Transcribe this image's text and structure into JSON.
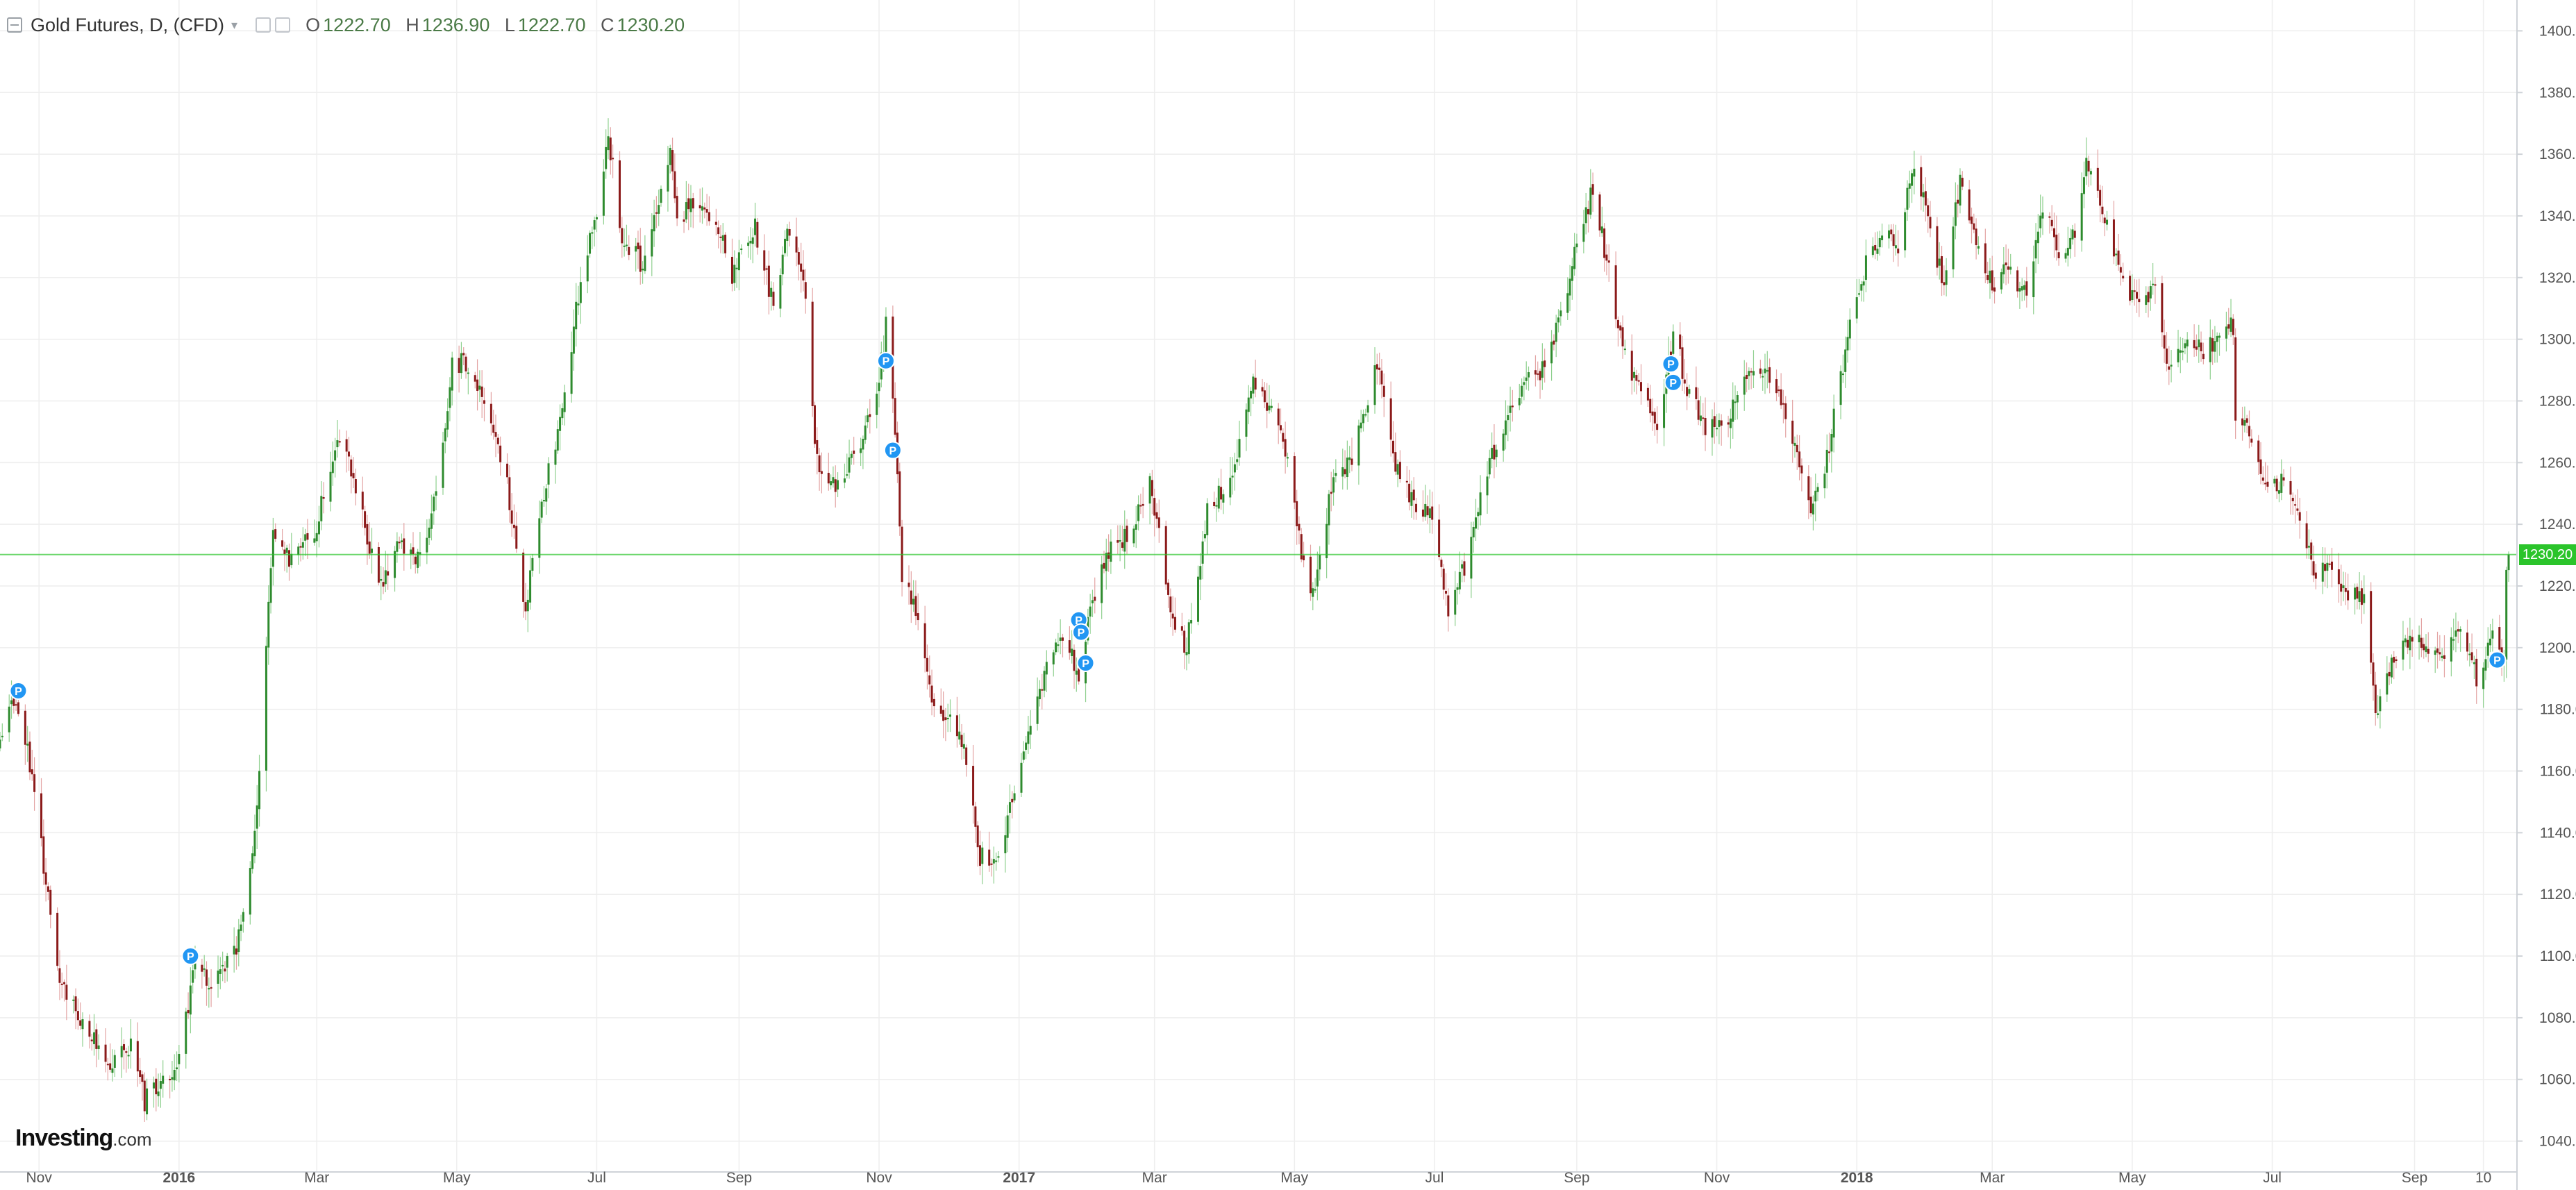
{
  "header": {
    "title": "Gold Futures, D, (CFD)",
    "ohlc": [
      {
        "label": "O",
        "value": "1222.70"
      },
      {
        "label": "H",
        "value": "1236.90"
      },
      {
        "label": "L",
        "value": "1222.70"
      },
      {
        "label": "C",
        "value": "1230.20"
      }
    ]
  },
  "branding": {
    "bold": "Investing",
    "suffix": ".com"
  },
  "last_price": {
    "value": 1230.2,
    "label": "1230.20",
    "color": "#2bc42b"
  },
  "colors": {
    "up": "#2e8b2e",
    "down": "#8b1a1a",
    "grid": "#eeeeee",
    "axis_text": "#555555",
    "marker": "#2196f3"
  },
  "chart_data": {
    "type": "candlestick",
    "title": "Gold Futures, D, (CFD)",
    "xlabel": "",
    "ylabel": "",
    "ylim": [
      1030,
      1410
    ],
    "x_range": [
      "2015-10-15",
      "2018-10-12"
    ],
    "grid": true,
    "price_axis_side": "right",
    "y_ticks": [
      1040,
      1060,
      1080,
      1100,
      1120,
      1140,
      1160,
      1180,
      1200,
      1220,
      1240,
      1260,
      1280,
      1300,
      1320,
      1340,
      1360,
      1380,
      1400
    ],
    "x_ticks": [
      {
        "date": "2015-11-01",
        "label": "Nov"
      },
      {
        "date": "2016-01-01",
        "label": "2016",
        "bold": true
      },
      {
        "date": "2016-03-01",
        "label": "Mar"
      },
      {
        "date": "2016-05-01",
        "label": "May"
      },
      {
        "date": "2016-07-01",
        "label": "Jul"
      },
      {
        "date": "2016-09-01",
        "label": "Sep"
      },
      {
        "date": "2016-11-01",
        "label": "Nov"
      },
      {
        "date": "2017-01-01",
        "label": "2017",
        "bold": true
      },
      {
        "date": "2017-03-01",
        "label": "Mar"
      },
      {
        "date": "2017-05-01",
        "label": "May"
      },
      {
        "date": "2017-07-01",
        "label": "Jul"
      },
      {
        "date": "2017-09-01",
        "label": "Sep"
      },
      {
        "date": "2017-11-01",
        "label": "Nov"
      },
      {
        "date": "2018-01-01",
        "label": "2018",
        "bold": true
      },
      {
        "date": "2018-03-01",
        "label": "Mar"
      },
      {
        "date": "2018-05-01",
        "label": "May"
      },
      {
        "date": "2018-07-01",
        "label": "Jul"
      },
      {
        "date": "2018-09-01",
        "label": "Sep"
      },
      {
        "date": "2018-10-01",
        "label": "10"
      }
    ],
    "close_path": [
      [
        "2015-10-15",
        1168
      ],
      [
        "2015-10-20",
        1183
      ],
      [
        "2015-10-27",
        1168
      ],
      [
        "2015-11-02",
        1136
      ],
      [
        "2015-11-09",
        1095
      ],
      [
        "2015-11-20",
        1078
      ],
      [
        "2015-12-02",
        1065
      ],
      [
        "2015-12-11",
        1072
      ],
      [
        "2015-12-17",
        1053
      ],
      [
        "2015-12-31",
        1062
      ],
      [
        "2016-01-08",
        1098
      ],
      [
        "2016-01-15",
        1090
      ],
      [
        "2016-01-25",
        1100
      ],
      [
        "2016-02-01",
        1128
      ],
      [
        "2016-02-05",
        1158
      ],
      [
        "2016-02-11",
        1240
      ],
      [
        "2016-02-19",
        1228
      ],
      [
        "2016-03-01",
        1240
      ],
      [
        "2016-03-10",
        1270
      ],
      [
        "2016-03-17",
        1254
      ],
      [
        "2016-03-28",
        1220
      ],
      [
        "2016-04-05",
        1232
      ],
      [
        "2016-04-14",
        1230
      ],
      [
        "2016-04-22",
        1248
      ],
      [
        "2016-04-29",
        1292
      ],
      [
        "2016-05-06",
        1292
      ],
      [
        "2016-05-16",
        1275
      ],
      [
        "2016-05-23",
        1252
      ],
      [
        "2016-05-31",
        1212
      ],
      [
        "2016-06-06",
        1244
      ],
      [
        "2016-06-16",
        1276
      ],
      [
        "2016-06-24",
        1320
      ],
      [
        "2016-07-01",
        1342
      ],
      [
        "2016-07-06",
        1366
      ],
      [
        "2016-07-12",
        1334
      ],
      [
        "2016-07-21",
        1324
      ],
      [
        "2016-08-02",
        1362
      ],
      [
        "2016-08-05",
        1337
      ],
      [
        "2016-08-12",
        1345
      ],
      [
        "2016-08-22",
        1340
      ],
      [
        "2016-08-29",
        1320
      ],
      [
        "2016-09-02",
        1327
      ],
      [
        "2016-09-08",
        1336
      ],
      [
        "2016-09-16",
        1310
      ],
      [
        "2016-09-22",
        1338
      ],
      [
        "2016-09-30",
        1316
      ],
      [
        "2016-10-04",
        1268
      ],
      [
        "2016-10-07",
        1256
      ],
      [
        "2016-10-14",
        1253
      ],
      [
        "2016-10-24",
        1266
      ],
      [
        "2016-11-01",
        1288
      ],
      [
        "2016-11-04",
        1304
      ],
      [
        "2016-11-08",
        1272
      ],
      [
        "2016-11-11",
        1224
      ],
      [
        "2016-11-18",
        1208
      ],
      [
        "2016-11-25",
        1180
      ],
      [
        "2016-12-02",
        1175
      ],
      [
        "2016-12-08",
        1170
      ],
      [
        "2016-12-15",
        1132
      ],
      [
        "2016-12-22",
        1130
      ],
      [
        "2016-12-30",
        1152
      ],
      [
        "2017-01-06",
        1173
      ],
      [
        "2017-01-13",
        1196
      ],
      [
        "2017-01-20",
        1205
      ],
      [
        "2017-01-27",
        1192
      ],
      [
        "2017-02-03",
        1218
      ],
      [
        "2017-02-10",
        1234
      ],
      [
        "2017-02-17",
        1236
      ],
      [
        "2017-02-27",
        1254
      ],
      [
        "2017-03-08",
        1212
      ],
      [
        "2017-03-15",
        1200
      ],
      [
        "2017-03-24",
        1244
      ],
      [
        "2017-04-04",
        1256
      ],
      [
        "2017-04-13",
        1286
      ],
      [
        "2017-04-21",
        1278
      ],
      [
        "2017-04-28",
        1262
      ],
      [
        "2017-05-04",
        1232
      ],
      [
        "2017-05-09",
        1218
      ],
      [
        "2017-05-17",
        1252
      ],
      [
        "2017-05-26",
        1262
      ],
      [
        "2017-06-06",
        1292
      ],
      [
        "2017-06-13",
        1262
      ],
      [
        "2017-06-21",
        1248
      ],
      [
        "2017-06-30",
        1244
      ],
      [
        "2017-07-07",
        1212
      ],
      [
        "2017-07-14",
        1226
      ],
      [
        "2017-07-24",
        1258
      ],
      [
        "2017-08-01",
        1272
      ],
      [
        "2017-08-10",
        1286
      ],
      [
        "2017-08-18",
        1290
      ],
      [
        "2017-08-28",
        1316
      ],
      [
        "2017-09-01",
        1333
      ],
      [
        "2017-09-08",
        1348
      ],
      [
        "2017-09-15",
        1322
      ],
      [
        "2017-09-21",
        1296
      ],
      [
        "2017-09-29",
        1282
      ],
      [
        "2017-10-06",
        1272
      ],
      [
        "2017-10-13",
        1302
      ],
      [
        "2017-10-20",
        1282
      ],
      [
        "2017-10-27",
        1272
      ],
      [
        "2017-11-03",
        1270
      ],
      [
        "2017-11-10",
        1282
      ],
      [
        "2017-11-20",
        1292
      ],
      [
        "2017-11-28",
        1282
      ],
      [
        "2017-12-06",
        1262
      ],
      [
        "2017-12-12",
        1242
      ],
      [
        "2017-12-19",
        1262
      ],
      [
        "2017-12-29",
        1303
      ],
      [
        "2018-01-04",
        1322
      ],
      [
        "2018-01-12",
        1336
      ],
      [
        "2018-01-19",
        1330
      ],
      [
        "2018-01-26",
        1358
      ],
      [
        "2018-02-02",
        1338
      ],
      [
        "2018-02-08",
        1315
      ],
      [
        "2018-02-15",
        1352
      ],
      [
        "2018-02-23",
        1330
      ],
      [
        "2018-03-01",
        1318
      ],
      [
        "2018-03-08",
        1322
      ],
      [
        "2018-03-16",
        1315
      ],
      [
        "2018-03-23",
        1344
      ],
      [
        "2018-03-30",
        1328
      ],
      [
        "2018-04-06",
        1334
      ],
      [
        "2018-04-11",
        1356
      ],
      [
        "2018-04-20",
        1336
      ],
      [
        "2018-04-27",
        1318
      ],
      [
        "2018-05-04",
        1312
      ],
      [
        "2018-05-11",
        1318
      ],
      [
        "2018-05-17",
        1290
      ],
      [
        "2018-05-25",
        1300
      ],
      [
        "2018-06-01",
        1296
      ],
      [
        "2018-06-08",
        1302
      ],
      [
        "2018-06-14",
        1304
      ],
      [
        "2018-06-15",
        1276
      ],
      [
        "2018-06-22",
        1268
      ],
      [
        "2018-06-29",
        1252
      ],
      [
        "2018-07-06",
        1254
      ],
      [
        "2018-07-12",
        1242
      ],
      [
        "2018-07-19",
        1226
      ],
      [
        "2018-07-26",
        1224
      ],
      [
        "2018-08-03",
        1216
      ],
      [
        "2018-08-10",
        1216
      ],
      [
        "2018-08-15",
        1178
      ],
      [
        "2018-08-22",
        1196
      ],
      [
        "2018-08-30",
        1204
      ],
      [
        "2018-09-07",
        1200
      ],
      [
        "2018-09-14",
        1198
      ],
      [
        "2018-09-21",
        1204
      ],
      [
        "2018-09-28",
        1190
      ],
      [
        "2018-10-05",
        1204
      ],
      [
        "2018-10-10",
        1192
      ],
      [
        "2018-10-11",
        1222
      ],
      [
        "2018-10-12",
        1230
      ]
    ],
    "events": [
      {
        "date": "2015-10-23",
        "price": 1186,
        "label": "P"
      },
      {
        "date": "2016-01-06",
        "price": 1100,
        "label": "P"
      },
      {
        "date": "2016-11-04",
        "price": 1293,
        "label": "P"
      },
      {
        "date": "2016-11-07",
        "price": 1264,
        "label": "P"
      },
      {
        "date": "2017-01-27",
        "price": 1209,
        "label": "P"
      },
      {
        "date": "2017-01-28",
        "price": 1205,
        "label": "P"
      },
      {
        "date": "2017-01-30",
        "price": 1195,
        "label": "P"
      },
      {
        "date": "2017-10-12",
        "price": 1292,
        "label": "P"
      },
      {
        "date": "2017-10-13",
        "price": 1286,
        "label": "P"
      },
      {
        "date": "2018-10-07",
        "price": 1196,
        "label": "P"
      }
    ]
  }
}
